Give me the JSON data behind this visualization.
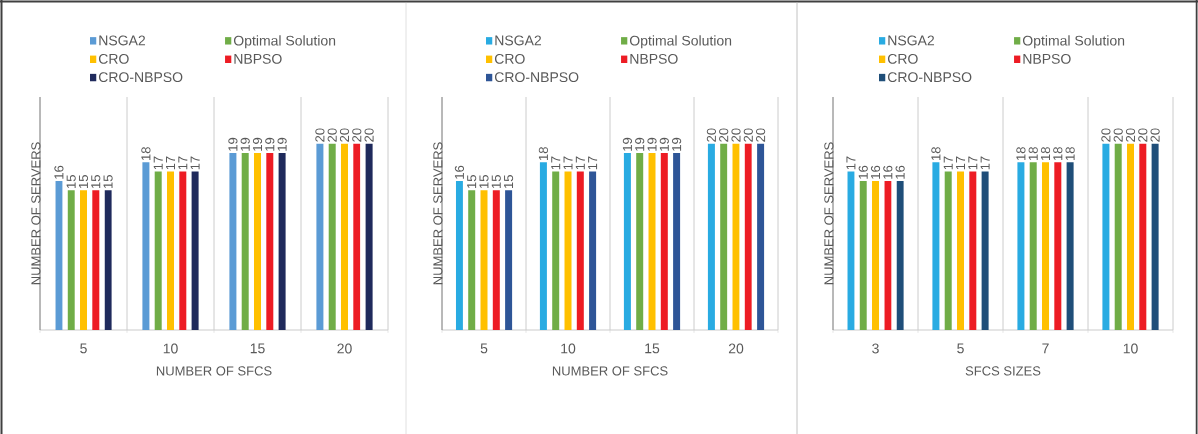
{
  "chart_data": [
    {
      "type": "bar",
      "xlabel": "NUMBER OF SFCS",
      "ylabel": "NUMBER OF SERVERS",
      "categories": [
        "5",
        "10",
        "15",
        "20"
      ],
      "data_labels": true,
      "legend": "top",
      "grid": "x",
      "tick_labels": "x",
      "series": [
        {
          "name": "NSGA2",
          "color": "#5b9bd5",
          "values": [
            16,
            18,
            19,
            20
          ]
        },
        {
          "name": "Optimal Solution",
          "color": "#70ad47",
          "values": [
            15,
            17,
            19,
            20
          ]
        },
        {
          "name": "CRO",
          "color": "#ffc000",
          "values": [
            15,
            17,
            19,
            20
          ]
        },
        {
          "name": "NBPSO",
          "color": "#ed1c24",
          "values": [
            15,
            17,
            19,
            20
          ]
        },
        {
          "name": "CRO-NBPSO",
          "color": "#1f2a5c",
          "values": [
            15,
            17,
            19,
            20
          ]
        }
      ]
    },
    {
      "type": "bar",
      "xlabel": "NUMBER OF SFCS",
      "ylabel": "NUMBER OF SERVERS",
      "categories": [
        "5",
        "10",
        "15",
        "20"
      ],
      "data_labels": true,
      "legend": "top",
      "grid": "x",
      "tick_labels": "x",
      "series": [
        {
          "name": "NSGA2",
          "color": "#29abe2",
          "values": [
            16,
            18,
            19,
            20
          ]
        },
        {
          "name": "Optimal Solution",
          "color": "#70ad47",
          "values": [
            15,
            17,
            19,
            20
          ]
        },
        {
          "name": "CRO",
          "color": "#ffc000",
          "values": [
            15,
            17,
            19,
            20
          ]
        },
        {
          "name": "NBPSO",
          "color": "#ed1c24",
          "values": [
            15,
            17,
            19,
            20
          ]
        },
        {
          "name": "CRO-NBPSO",
          "color": "#2e5597",
          "values": [
            15,
            17,
            19,
            20
          ]
        }
      ]
    },
    {
      "type": "bar",
      "xlabel": "SFCS SIZES",
      "ylabel": "NUMBER OF SERVERS",
      "categories": [
        "3",
        "5",
        "7",
        "10"
      ],
      "data_labels": true,
      "legend": "top",
      "grid": "x",
      "tick_labels": "x",
      "series": [
        {
          "name": "NSGA2",
          "color": "#29abe2",
          "values": [
            17,
            18,
            18,
            20
          ]
        },
        {
          "name": "Optimal Solution",
          "color": "#70ad47",
          "values": [
            16,
            17,
            18,
            20
          ]
        },
        {
          "name": "CRO",
          "color": "#ffc000",
          "values": [
            16,
            17,
            18,
            20
          ]
        },
        {
          "name": "NBPSO",
          "color": "#ed1c24",
          "values": [
            16,
            17,
            18,
            20
          ]
        },
        {
          "name": "CRO-NBPSO",
          "color": "#1f4e79",
          "values": [
            16,
            17,
            18,
            20
          ]
        }
      ]
    }
  ]
}
